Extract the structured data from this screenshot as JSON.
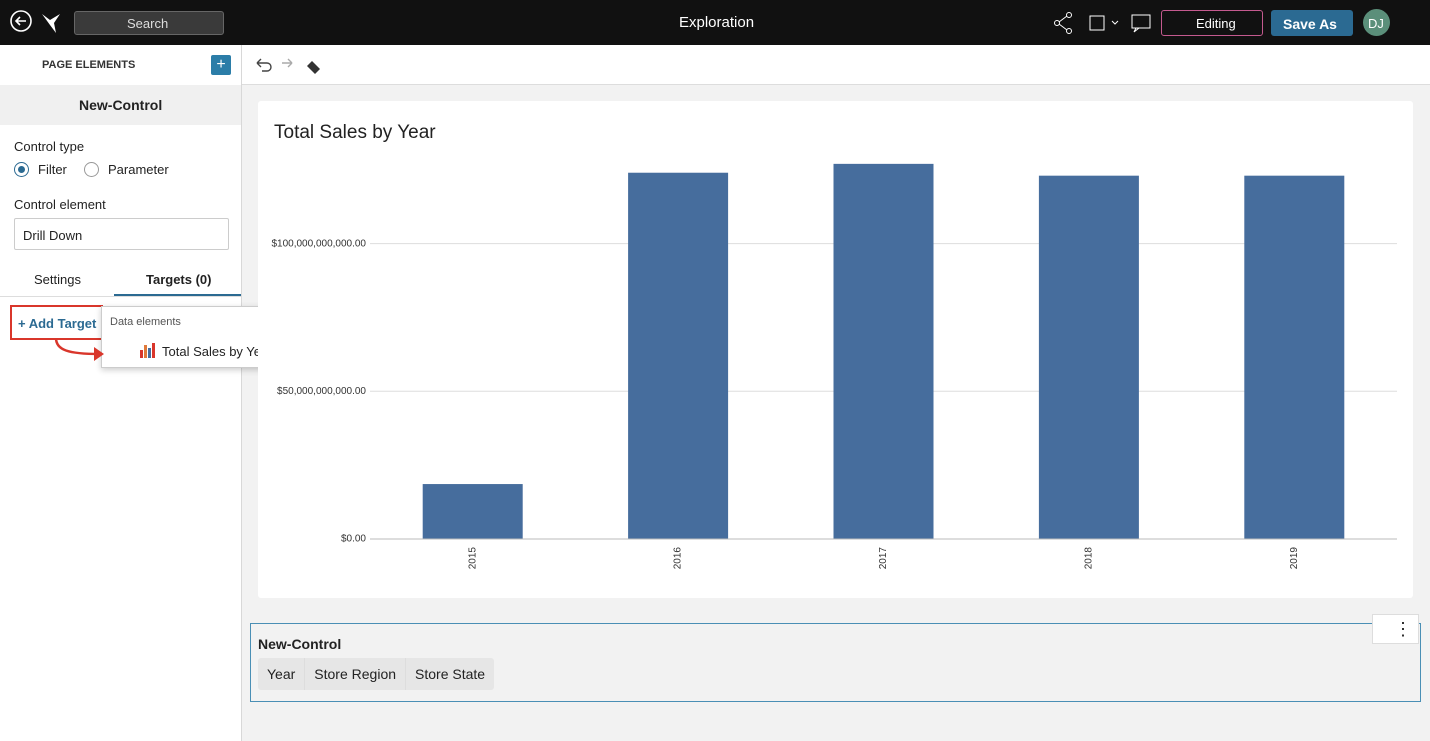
{
  "header": {
    "search": "Search",
    "title": "Exploration",
    "mode": "Editing",
    "save": "Save As",
    "avatar": "DJ"
  },
  "sidebar": {
    "heading": "PAGE ELEMENTS",
    "element": "New-Control",
    "control_type_label": "Control type",
    "options": [
      "Filter",
      "Parameter"
    ],
    "control_element_label": "Control element",
    "control_element": "Drill Down",
    "tabs": [
      "Settings",
      "Targets (0)"
    ],
    "add_target": "+ Add Target",
    "menu_heading": "Data elements",
    "menu_item": "Total Sales by Year"
  },
  "chart_data": {
    "type": "bar",
    "title": "Total Sales by Year",
    "categories": [
      "2015",
      "2016",
      "2017",
      "2018",
      "2019"
    ],
    "values": [
      18600000000,
      124000000000,
      127000000000,
      123000000000,
      123000000000
    ],
    "color": "#466d9d",
    "ylim": [
      0,
      130000000000
    ],
    "yticks": [
      {
        "value": 0,
        "label": "$0.00"
      },
      {
        "value": 50000000000,
        "label": "$50,000,000,000.00"
      },
      {
        "value": 100000000000,
        "label": "$100,000,000,000.00"
      }
    ],
    "grid": true
  },
  "control": {
    "title": "New-Control",
    "chips": [
      "Year",
      "Store Region",
      "Store State"
    ]
  }
}
